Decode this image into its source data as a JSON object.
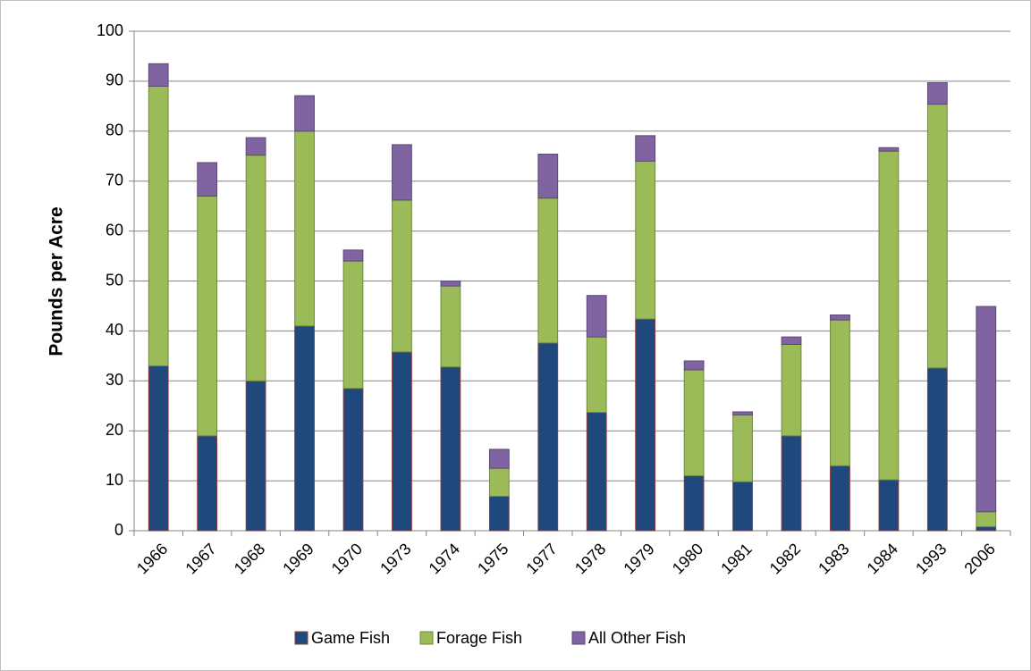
{
  "chart_data": {
    "type": "stacked_bar",
    "y_label": "Pounds per Acre",
    "categories": [
      "1966",
      "1967",
      "1968",
      "1969",
      "1970",
      "1973",
      "1974",
      "1975",
      "1977",
      "1978",
      "1979",
      "1980",
      "1981",
      "1982",
      "1983",
      "1984",
      "1993",
      "2006"
    ],
    "series": [
      {
        "name": "Game Fish",
        "color": "#1f497d",
        "edge": "#8b3a3a",
        "values": [
          33,
          19,
          30,
          41,
          28.5,
          35.8,
          32.8,
          6.9,
          37.6,
          23.7,
          42.4,
          11,
          9.8,
          19,
          13,
          10.2,
          32.6,
          0.8
        ]
      },
      {
        "name": "Forage Fish",
        "color": "#9bbb59",
        "edge": "#6f8a3c",
        "values": [
          56,
          48,
          45.2,
          39,
          25.5,
          30.4,
          16.2,
          5.6,
          29,
          15.1,
          31.6,
          21.2,
          13.4,
          18.3,
          29.2,
          65.8,
          52.8,
          3
        ]
      },
      {
        "name": "All Other Fish",
        "color": "#8064a2",
        "edge": "#5c4776",
        "values": [
          4.5,
          6.7,
          3.5,
          7.1,
          2.2,
          11.1,
          1,
          3.8,
          8.8,
          8.3,
          5.1,
          1.8,
          0.6,
          1.5,
          1,
          0.7,
          4.3,
          41.1
        ]
      }
    ],
    "ylim": [
      0,
      100
    ],
    "yticks": [
      0,
      10,
      20,
      30,
      40,
      50,
      60,
      70,
      80,
      90,
      100
    ],
    "grid": true,
    "legend": "bottom"
  }
}
